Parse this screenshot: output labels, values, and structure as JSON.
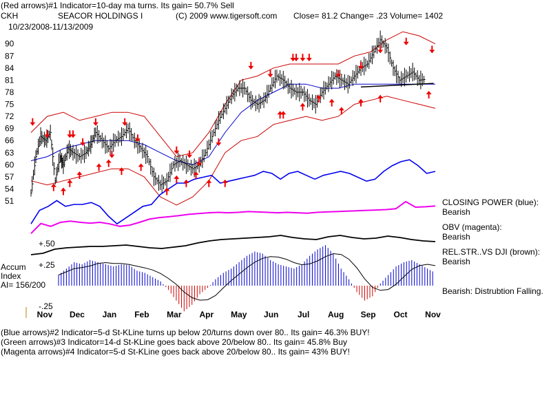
{
  "header": {
    "line1": "(Red arrows)#1 Indicator=10-day ma turns. Its gain= 50.7% Sell",
    "ticker": "CKH",
    "company": "SEACOR HOLDINGS I",
    "copyright": "(C) 2009 www.tigersoft.com",
    "close_text": "Close=  81.2  Change= .23 Volume=  1402",
    "date_range": "10/23/2008-11/13/2009"
  },
  "indicators": {
    "closing_power_label": "CLOSING POWER (blue):",
    "closing_power_status": "Bearish",
    "obv_label": "OBV (magenta):",
    "obv_status": "Bearish",
    "relstr_label": "REL.STR..VS DJI (brown):",
    "relstr_status": "Bearish",
    "accum_title1": "Accum",
    "accum_title2": "Index",
    "accum_ai": "AI= 156/200",
    "accum_status": "Bearish:  Distrubtion Falling.",
    "tick_plus50": "+.50",
    "tick_plus25": "+.25",
    "tick_minus25": "-.25"
  },
  "footer": {
    "line1": "(Blue arrows)#2 Indicator=5-d St-KLine turns up below 20/turns down over 80.. Its gain= 46.3% BUY!",
    "line2": "(Green arrows)#3 Indicator=14-d St-KLine goes back above 20/below 80.. Its gain= 45.8% Buy",
    "line3": "(Magenta arrows)#4 Indicator=5-d St-KLine goes back above 20/below 80.. Its gain= 43% BUY!"
  },
  "colors": {
    "price": "#000000",
    "bands": "#cc0000",
    "ma": "#0000cc",
    "closing_power": "#0000ee",
    "obv": "#ee00ee",
    "relstr": "#000000",
    "accum_pos": "#0000cc",
    "accum_neg": "#cc0000",
    "arrows": "#ee0000"
  },
  "chart_data": {
    "type": "line",
    "ylim": [
      51,
      92
    ],
    "y_ticks": [
      51,
      54,
      57,
      60,
      63,
      66,
      69,
      72,
      75,
      78,
      81,
      84,
      87,
      90
    ],
    "x_ticks": [
      "Nov",
      "Dec",
      "Jan",
      "Feb",
      "Mar",
      "Apr",
      "May",
      "Jun",
      "Jul",
      "Aug",
      "Sep",
      "Oct",
      "Nov"
    ],
    "x_range": [
      0,
      12.5
    ],
    "series": [
      {
        "name": "Price",
        "x": [
          0,
          0.15,
          0.3,
          0.45,
          0.6,
          0.75,
          0.9,
          1,
          1.15,
          1.3,
          1.5,
          1.7,
          1.85,
          2,
          2.2,
          2.4,
          2.6,
          2.8,
          3,
          3.2,
          3.4,
          3.6,
          3.8,
          4,
          4.2,
          4.4,
          4.6,
          4.8,
          5,
          5.2,
          5.4,
          5.6,
          5.8,
          6,
          6.2,
          6.4,
          6.6,
          6.8,
          7,
          7.2,
          7.4,
          7.6,
          7.8,
          8,
          8.2,
          8.4,
          8.6,
          8.8,
          9,
          9.2,
          9.4,
          9.6,
          9.8,
          10,
          10.2,
          10.4,
          10.6,
          10.8,
          11,
          11.2,
          11.4,
          11.6,
          11.8,
          12,
          12.2
        ],
        "values": [
          53,
          62,
          67,
          66,
          68,
          56,
          62,
          60,
          64,
          63,
          62,
          63,
          65,
          68,
          66,
          64,
          66,
          67,
          69,
          66,
          64,
          62,
          57,
          55,
          56,
          60,
          61,
          60,
          59,
          60,
          63,
          67,
          71,
          74,
          77,
          79,
          79,
          76,
          75,
          76,
          79,
          82,
          81,
          79,
          78,
          78,
          76,
          75,
          78,
          80,
          82,
          81,
          80,
          82,
          84,
          85,
          88,
          91,
          89,
          84,
          81,
          82,
          83,
          81,
          81.2
        ]
      },
      {
        "name": "Upper Band",
        "x": [
          0,
          0.5,
          1,
          1.5,
          2,
          2.5,
          3,
          3.5,
          4,
          4.5,
          5,
          5.5,
          6,
          6.5,
          7,
          7.5,
          8,
          8.5,
          9,
          9.5,
          10,
          10.5,
          11,
          11.5,
          12,
          12.5
        ],
        "values": [
          68,
          72,
          73,
          71,
          72,
          73,
          73,
          72,
          67,
          62,
          63,
          68,
          75,
          81,
          82,
          84,
          85,
          85,
          85,
          85,
          87,
          88,
          91,
          93,
          92,
          90
        ]
      },
      {
        "name": "Lower Band",
        "x": [
          0,
          0.5,
          1,
          1.5,
          2,
          2.5,
          3,
          3.5,
          4,
          4.5,
          5,
          5.5,
          6,
          6.5,
          7,
          7.5,
          8,
          8.5,
          9,
          9.5,
          10,
          10.5,
          11,
          11.5,
          12,
          12.5
        ],
        "values": [
          56,
          55,
          56,
          57,
          58,
          59,
          59,
          57,
          52,
          50,
          52,
          56,
          63,
          66,
          67,
          70,
          71,
          72,
          71,
          72,
          75,
          76,
          77,
          76,
          75,
          74
        ]
      },
      {
        "name": "Moving Average",
        "x": [
          0,
          0.5,
          1,
          1.5,
          2,
          2.5,
          3,
          3.5,
          4,
          4.5,
          5,
          5.5,
          6,
          6.5,
          7,
          7.5,
          8,
          8.5,
          9,
          9.5,
          10,
          10.5,
          11,
          11.5,
          12,
          12.5
        ],
        "values": [
          61,
          62,
          64,
          65,
          66,
          66,
          66,
          65,
          63,
          61,
          60,
          62,
          68,
          73,
          76,
          78,
          80,
          80,
          79,
          79,
          80,
          80,
          80,
          80,
          80,
          80
        ]
      }
    ],
    "sell_arrows": [
      [
        0.05,
        70
      ],
      [
        0.5,
        67
      ],
      [
        1.2,
        67
      ],
      [
        1.3,
        67
      ],
      [
        1.6,
        65
      ],
      [
        2.0,
        70
      ],
      [
        2.5,
        62
      ],
      [
        2.9,
        70
      ],
      [
        3.3,
        66
      ],
      [
        4.5,
        63
      ],
      [
        4.9,
        62
      ],
      [
        5.2,
        60
      ],
      [
        5.8,
        65
      ],
      [
        6.8,
        84
      ],
      [
        7.4,
        82
      ],
      [
        8.1,
        86
      ],
      [
        8.2,
        86
      ],
      [
        8.4,
        86
      ],
      [
        8.6,
        86
      ],
      [
        9.5,
        82
      ],
      [
        10.2,
        84
      ],
      [
        10.8,
        88
      ],
      [
        11.6,
        90
      ],
      [
        12.4,
        88
      ]
    ],
    "buy_arrows": [
      [
        0.7,
        55
      ],
      [
        1.0,
        54
      ],
      [
        1.2,
        56
      ],
      [
        1.5,
        58
      ],
      [
        2.1,
        60
      ],
      [
        2.4,
        61
      ],
      [
        2.8,
        59
      ],
      [
        3.4,
        60
      ],
      [
        4.2,
        54
      ],
      [
        4.5,
        57
      ],
      [
        4.8,
        56
      ],
      [
        5.1,
        58
      ],
      [
        5.5,
        56
      ],
      [
        6.0,
        56
      ],
      [
        7.7,
        73
      ],
      [
        7.8,
        73
      ],
      [
        8.4,
        75
      ],
      [
        8.9,
        77
      ],
      [
        9.3,
        76
      ],
      [
        9.6,
        74
      ],
      [
        10.2,
        76
      ],
      [
        10.8,
        77
      ],
      [
        12.3,
        78
      ]
    ],
    "closing_power": [
      57,
      64,
      66,
      69,
      66,
      67,
      67,
      68,
      66,
      61,
      57,
      60,
      63,
      66,
      67,
      72,
      75,
      78,
      78,
      80,
      81,
      82,
      78,
      79,
      80,
      81,
      82,
      84,
      83,
      80,
      83,
      84,
      82,
      80,
      82,
      83,
      84,
      83,
      81,
      79,
      80,
      84,
      87,
      89,
      90,
      87,
      83,
      84
    ],
    "obv": [
      10,
      35,
      28,
      38,
      41,
      38,
      36,
      38,
      34,
      28,
      31,
      38,
      46,
      50,
      52,
      55,
      58,
      60,
      62,
      63,
      62,
      63,
      65,
      64,
      63,
      62,
      63,
      62,
      61,
      63,
      64,
      65,
      66,
      67,
      68,
      69,
      70,
      72,
      90,
      76,
      77,
      79
    ],
    "relstr": [
      30,
      32,
      38,
      40,
      41,
      42,
      42,
      43,
      44,
      42,
      40,
      39,
      41,
      43,
      47,
      50,
      52,
      53,
      54,
      55,
      56,
      58,
      55,
      53,
      52,
      56,
      58,
      55,
      53,
      54,
      57,
      55,
      52,
      50,
      49
    ],
    "accum": [
      25,
      40,
      55,
      50,
      60,
      55,
      50,
      45,
      50,
      48,
      35,
      30,
      20,
      10,
      -10,
      -35,
      -60,
      -45,
      -20,
      -5,
      15,
      30,
      40,
      55,
      70,
      80,
      75,
      60,
      50,
      45,
      40,
      50,
      70,
      85,
      95,
      75,
      40,
      15,
      -15,
      -35,
      -25,
      5,
      25,
      45,
      55,
      60,
      50,
      40,
      30
    ]
  }
}
